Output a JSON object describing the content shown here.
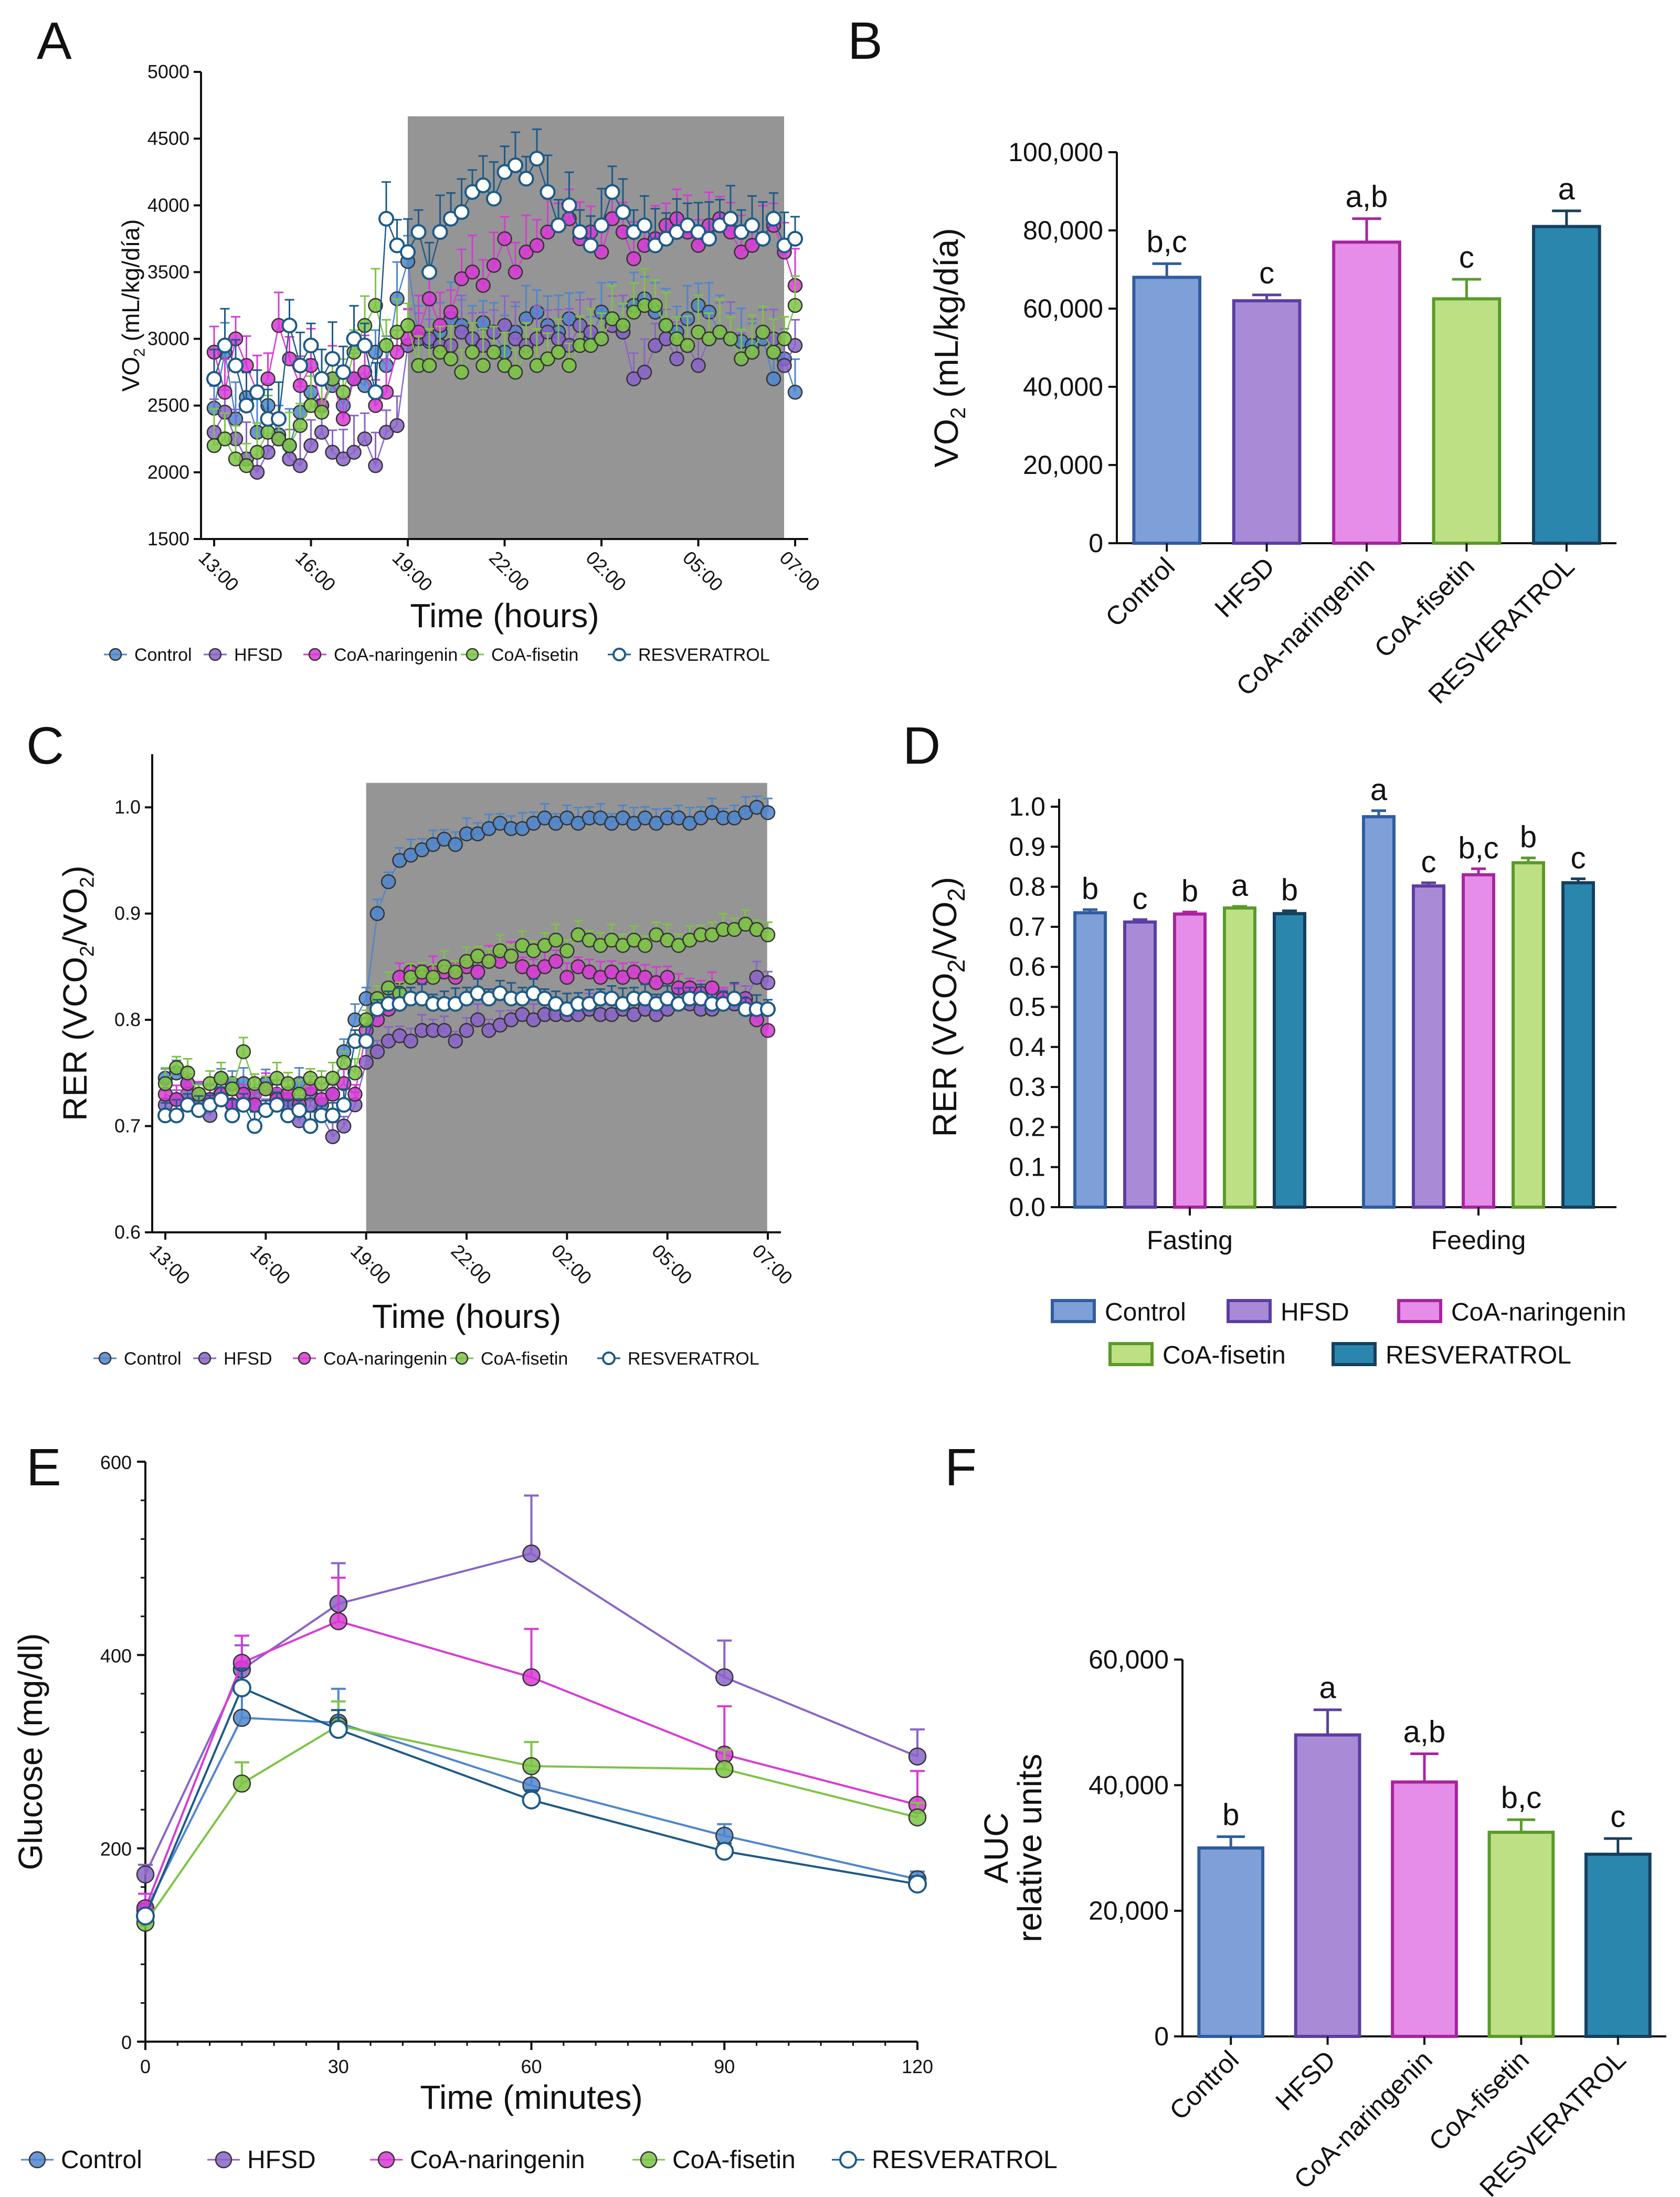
{
  "colors": {
    "Control": "#4f86cc",
    "HFSD": "#8a64c8",
    "CoA-naringenin": "#d73bd4",
    "CoA-fisetin": "#7dc444",
    "RESVERATROL": "#1c5a88",
    "shade": "#959595"
  },
  "fills": {
    "Control": "#7f9fd8",
    "HFSD": "#a98ad6",
    "CoA-naringenin": "#e58de8",
    "CoA-fisetin": "#bde084",
    "RESVERATROL": "#2a86ad"
  },
  "edges": {
    "Control": "#2f5d9e",
    "HFSD": "#5b3ea3",
    "CoA-naringenin": "#a8249f",
    "CoA-fisetin": "#5a9a2a",
    "RESVERATROL": "#173f5e"
  },
  "panels": {
    "A": "A",
    "B": "B",
    "C": "C",
    "D": "D",
    "E": "E",
    "F": "F"
  },
  "chart_data": [
    {
      "id": "A",
      "type": "line",
      "xlabel": "Time (hours)",
      "ylabel": "VO2 (mL/kg/día)",
      "ylabel_main": "VO",
      "ylabel_sub": "2",
      "ylabel_tail": " (mL/kg/día)",
      "xticks": [
        "13:00",
        "16:00",
        "19:00",
        "22:00",
        "02:00",
        "05:00",
        "07:00"
      ],
      "xtick_pos": [
        0,
        9,
        18,
        27,
        36,
        45,
        54
      ],
      "ylim": [
        1500,
        5000
      ],
      "yticks": [
        1500,
        2000,
        2500,
        3000,
        3500,
        4000,
        4500,
        5000
      ],
      "shaded_x": [
        18,
        52
      ],
      "n_points": 55,
      "series": [
        {
          "name": "Control",
          "open": false,
          "values": [
            2480,
            2900,
            2400,
            2560,
            2300,
            2500,
            2280,
            2200,
            2450,
            2600,
            2500,
            2650,
            2500,
            2700,
            2650,
            2900,
            2800,
            3300,
            3580,
            3000,
            2980,
            3050,
            3150,
            3100,
            3000,
            3120,
            3050,
            2900,
            3050,
            3150,
            3200,
            3100,
            3050,
            3150,
            3100,
            3000,
            3200,
            3150,
            3050,
            3250,
            3300,
            3200,
            3100,
            3050,
            3150,
            3250,
            3200,
            3050,
            3000,
            2980,
            2950,
            3000,
            2700,
            2850,
            2600
          ]
        },
        {
          "name": "HFSD",
          "open": false,
          "values": [
            2300,
            2450,
            2250,
            2100,
            2000,
            2150,
            2250,
            2100,
            2050,
            2200,
            2300,
            2150,
            2100,
            2150,
            2250,
            2050,
            2300,
            2350,
            2950,
            3000,
            3000,
            2950,
            2950,
            3050,
            3000,
            2950,
            3050,
            3100,
            3000,
            2950,
            3000,
            3050,
            3000,
            2950,
            3100,
            3050,
            3000,
            3100,
            3050,
            2700,
            2750,
            2950,
            3000,
            2850,
            2950,
            2800,
            3000,
            3050,
            3000,
            2850,
            2900,
            3050,
            3000,
            2800,
            2950
          ]
        },
        {
          "name": "CoA-naringenin",
          "open": false,
          "values": [
            2900,
            2600,
            3000,
            2800,
            2600,
            2700,
            3100,
            2850,
            2650,
            2800,
            2500,
            2700,
            2400,
            2700,
            2750,
            2500,
            2600,
            2900,
            3000,
            3050,
            3300,
            3100,
            3200,
            3450,
            3500,
            3400,
            3550,
            3750,
            3500,
            3650,
            3700,
            3800,
            3850,
            3900,
            3750,
            3800,
            3650,
            3900,
            3800,
            3600,
            3700,
            3750,
            3850,
            3900,
            3800,
            3700,
            3850,
            3900,
            3800,
            3650,
            3700,
            3750,
            3850,
            3650,
            3400
          ]
        },
        {
          "name": "CoA-fisetin",
          "open": false,
          "values": [
            2200,
            2250,
            2100,
            2050,
            2150,
            2300,
            2250,
            2200,
            2350,
            2500,
            2450,
            2700,
            2600,
            2900,
            3100,
            3250,
            2950,
            3050,
            3100,
            2800,
            2800,
            2900,
            2850,
            2750,
            2900,
            2800,
            2900,
            2800,
            2750,
            2900,
            2800,
            2850,
            2900,
            2800,
            2950,
            2950,
            3000,
            3150,
            3100,
            3200,
            3250,
            3250,
            3100,
            3000,
            2950,
            3050,
            3000,
            3050,
            3000,
            2850,
            2900,
            3050,
            2900,
            3000,
            3250
          ]
        },
        {
          "name": "RESVERATROL",
          "open": true,
          "values": [
            2700,
            2950,
            2800,
            2500,
            2600,
            2400,
            2400,
            3100,
            2800,
            2950,
            2700,
            2850,
            2750,
            3000,
            2950,
            2600,
            3900,
            3700,
            3650,
            3800,
            3500,
            3800,
            3900,
            3950,
            4100,
            4150,
            4050,
            4250,
            4300,
            4200,
            4350,
            4100,
            3850,
            4000,
            3800,
            3700,
            3850,
            4100,
            3950,
            3800,
            3850,
            3700,
            3750,
            3800,
            3850,
            3800,
            3750,
            3850,
            3900,
            3800,
            3850,
            3750,
            3900,
            3700,
            3750
          ]
        }
      ]
    },
    {
      "id": "B",
      "type": "bar",
      "ylabel": "VO2 (mL/kg/día)",
      "ylabel_main": "VO",
      "ylabel_sub": "2",
      "ylabel_tail": " (mL/kg/día)",
      "ylim": [
        0,
        100000
      ],
      "yticks": [
        0,
        20000,
        40000,
        60000,
        80000,
        100000
      ],
      "ytick_labels": [
        "0",
        "20,000",
        "40,000",
        "60,000",
        "80,000",
        "100,000"
      ],
      "categories": [
        "Control",
        "HFSD",
        "CoA-naringenin",
        "CoA-fisetin",
        "RESVERATROL"
      ],
      "values": [
        68000,
        62000,
        77000,
        62500,
        81000
      ],
      "errors": [
        3500,
        1500,
        6000,
        5000,
        4000
      ],
      "letters": [
        "b,c",
        "c",
        "a,b",
        "c",
        "a"
      ]
    },
    {
      "id": "C",
      "type": "line",
      "xlabel": "Time (hours)",
      "ylabel": "RER (VCO2/VO2)",
      "ylabel_parts": [
        "RER (VCO",
        "2",
        "/VO",
        "2",
        ")"
      ],
      "xticks": [
        "13:00",
        "16:00",
        "19:00",
        "22:00",
        "02:00",
        "05:00",
        "07:00"
      ],
      "xtick_pos": [
        0,
        9,
        18,
        27,
        36,
        45,
        54
      ],
      "ylim": [
        0.6,
        1.05
      ],
      "yticks": [
        0.6,
        0.7,
        0.8,
        0.9,
        1.0
      ],
      "ytick_labels": [
        "0.6",
        "0.7",
        "0.8",
        "0.9",
        "1.0"
      ],
      "shaded_x": [
        18,
        53
      ],
      "n_points": 55,
      "series": [
        {
          "name": "Control",
          "open": false,
          "values": [
            0.745,
            0.75,
            0.74,
            0.73,
            0.725,
            0.745,
            0.74,
            0.74,
            0.72,
            0.74,
            0.73,
            0.725,
            0.74,
            0.73,
            0.72,
            0.73,
            0.77,
            0.8,
            0.82,
            0.9,
            0.93,
            0.95,
            0.955,
            0.96,
            0.965,
            0.97,
            0.965,
            0.975,
            0.975,
            0.98,
            0.985,
            0.98,
            0.98,
            0.985,
            0.99,
            0.985,
            0.99,
            0.985,
            0.99,
            0.99,
            0.985,
            0.99,
            0.985,
            0.99,
            0.985,
            0.99,
            0.99,
            0.985,
            0.99,
            0.995,
            0.99,
            0.99,
            0.995,
            1.0,
            0.995
          ]
        },
        {
          "name": "HFSD",
          "open": false,
          "values": [
            0.72,
            0.725,
            0.73,
            0.72,
            0.71,
            0.73,
            0.72,
            0.72,
            0.73,
            0.715,
            0.73,
            0.72,
            0.705,
            0.72,
            0.71,
            0.69,
            0.7,
            0.72,
            0.76,
            0.77,
            0.78,
            0.785,
            0.78,
            0.79,
            0.79,
            0.79,
            0.78,
            0.79,
            0.8,
            0.79,
            0.795,
            0.8,
            0.805,
            0.8,
            0.805,
            0.805,
            0.805,
            0.805,
            0.81,
            0.805,
            0.805,
            0.81,
            0.805,
            0.81,
            0.805,
            0.81,
            0.815,
            0.815,
            0.81,
            0.81,
            0.815,
            0.815,
            0.82,
            0.84,
            0.835
          ]
        },
        {
          "name": "CoA-naringenin",
          "open": false,
          "values": [
            0.73,
            0.725,
            0.74,
            0.73,
            0.725,
            0.73,
            0.72,
            0.73,
            0.72,
            0.735,
            0.725,
            0.73,
            0.72,
            0.735,
            0.725,
            0.73,
            0.74,
            0.73,
            0.79,
            0.8,
            0.81,
            0.84,
            0.845,
            0.84,
            0.845,
            0.845,
            0.84,
            0.85,
            0.845,
            0.855,
            0.855,
            0.86,
            0.85,
            0.845,
            0.85,
            0.855,
            0.84,
            0.85,
            0.845,
            0.84,
            0.845,
            0.84,
            0.845,
            0.84,
            0.835,
            0.84,
            0.83,
            0.83,
            0.825,
            0.83,
            0.82,
            0.82,
            0.815,
            0.8,
            0.79
          ]
        },
        {
          "name": "CoA-fisetin",
          "open": false,
          "values": [
            0.74,
            0.755,
            0.75,
            0.73,
            0.74,
            0.745,
            0.735,
            0.77,
            0.74,
            0.735,
            0.745,
            0.74,
            0.73,
            0.745,
            0.74,
            0.745,
            0.76,
            0.75,
            0.8,
            0.82,
            0.83,
            0.825,
            0.84,
            0.845,
            0.84,
            0.85,
            0.845,
            0.855,
            0.86,
            0.855,
            0.865,
            0.86,
            0.87,
            0.865,
            0.87,
            0.875,
            0.865,
            0.88,
            0.875,
            0.87,
            0.875,
            0.87,
            0.875,
            0.87,
            0.88,
            0.875,
            0.87,
            0.875,
            0.88,
            0.88,
            0.885,
            0.885,
            0.89,
            0.885,
            0.88
          ]
        },
        {
          "name": "RESVERATROL",
          "open": true,
          "values": [
            0.71,
            0.71,
            0.72,
            0.715,
            0.72,
            0.725,
            0.71,
            0.72,
            0.7,
            0.715,
            0.72,
            0.71,
            0.715,
            0.7,
            0.71,
            0.71,
            0.72,
            0.78,
            0.78,
            0.81,
            0.815,
            0.815,
            0.82,
            0.82,
            0.815,
            0.815,
            0.815,
            0.82,
            0.825,
            0.82,
            0.825,
            0.82,
            0.82,
            0.825,
            0.82,
            0.815,
            0.81,
            0.815,
            0.815,
            0.82,
            0.82,
            0.815,
            0.82,
            0.82,
            0.815,
            0.82,
            0.815,
            0.82,
            0.82,
            0.815,
            0.815,
            0.82,
            0.81,
            0.81,
            0.81
          ]
        }
      ]
    },
    {
      "id": "D",
      "type": "bar",
      "ylabel": "RER (VCO2/VO2)",
      "ylabel_parts": [
        "RER (VCO",
        "2",
        "/VO",
        "2",
        ")"
      ],
      "ylim": [
        0,
        1.0
      ],
      "yticks": [
        0,
        0.1,
        0.2,
        0.3,
        0.4,
        0.5,
        0.6,
        0.7,
        0.8,
        0.9,
        1.0
      ],
      "ytick_labels": [
        "0.0",
        "0.1",
        "0.2",
        "0.3",
        "0.4",
        "0.5",
        "0.6",
        "0.7",
        "0.8",
        "0.9",
        "1.0"
      ],
      "groups": [
        "Fasting",
        "Feeding"
      ],
      "series": [
        {
          "name": "Control",
          "values": [
            0.735,
            0.975
          ],
          "errors": [
            0.008,
            0.015
          ],
          "letters": [
            "b",
            "a"
          ]
        },
        {
          "name": "HFSD",
          "values": [
            0.712,
            0.802
          ],
          "errors": [
            0.006,
            0.008
          ],
          "letters": [
            "c",
            "c"
          ]
        },
        {
          "name": "CoA-naringenin",
          "values": [
            0.732,
            0.83
          ],
          "errors": [
            0.005,
            0.015
          ],
          "letters": [
            "b",
            "b,c"
          ]
        },
        {
          "name": "CoA-fisetin",
          "values": [
            0.747,
            0.86
          ],
          "errors": [
            0.004,
            0.012
          ],
          "letters": [
            "a",
            "b"
          ]
        },
        {
          "name": "RESVERATROL",
          "values": [
            0.733,
            0.81
          ],
          "errors": [
            0.007,
            0.01
          ],
          "letters": [
            "b",
            "c"
          ]
        }
      ]
    },
    {
      "id": "E",
      "type": "line",
      "xlabel": "Time (minutes)",
      "ylabel": "Glucose (mg/dl)",
      "x": [
        0,
        15,
        30,
        60,
        90,
        120
      ],
      "xticks": [
        0,
        30,
        60,
        90,
        120
      ],
      "xlim": [
        0,
        120
      ],
      "ylim": [
        0,
        600
      ],
      "yticks": [
        0,
        200,
        400,
        600
      ],
      "series": [
        {
          "name": "Control",
          "open": false,
          "values": [
            135,
            335,
            330,
            265,
            213,
            168
          ],
          "errors": [
            8,
            30,
            35,
            15,
            12,
            8
          ]
        },
        {
          "name": "HFSD",
          "open": false,
          "values": [
            173,
            385,
            453,
            505,
            377,
            295
          ],
          "errors": [
            10,
            25,
            42,
            60,
            38,
            28
          ]
        },
        {
          "name": "CoA-naringenin",
          "open": false,
          "values": [
            138,
            392,
            435,
            377,
            297,
            245
          ],
          "errors": [
            15,
            28,
            45,
            50,
            50,
            35
          ]
        },
        {
          "name": "CoA-fisetin",
          "open": false,
          "values": [
            123,
            267,
            327,
            285,
            282,
            232
          ],
          "errors": [
            5,
            22,
            25,
            25,
            20,
            15
          ]
        },
        {
          "name": "RESVERATROL",
          "open": true,
          "values": [
            130,
            366,
            323,
            250,
            197,
            163
          ],
          "errors": [
            5,
            20,
            20,
            10,
            8,
            8
          ]
        }
      ]
    },
    {
      "id": "F",
      "type": "bar",
      "ylabel": "AUC",
      "ylabel2": "relative units",
      "ylim": [
        0,
        60000
      ],
      "yticks": [
        0,
        20000,
        40000,
        60000
      ],
      "ytick_labels": [
        "0",
        "20,000",
        "40,000",
        "60,000"
      ],
      "categories": [
        "Control",
        "HFSD",
        "CoA-naringenin",
        "CoA-fisetin",
        "RESVERATROL"
      ],
      "values": [
        30000,
        48000,
        40500,
        32500,
        29000
      ],
      "errors": [
        1800,
        4000,
        4500,
        2000,
        2500
      ],
      "letters": [
        "b",
        "a",
        "a,b",
        "b,c",
        "c"
      ]
    }
  ]
}
